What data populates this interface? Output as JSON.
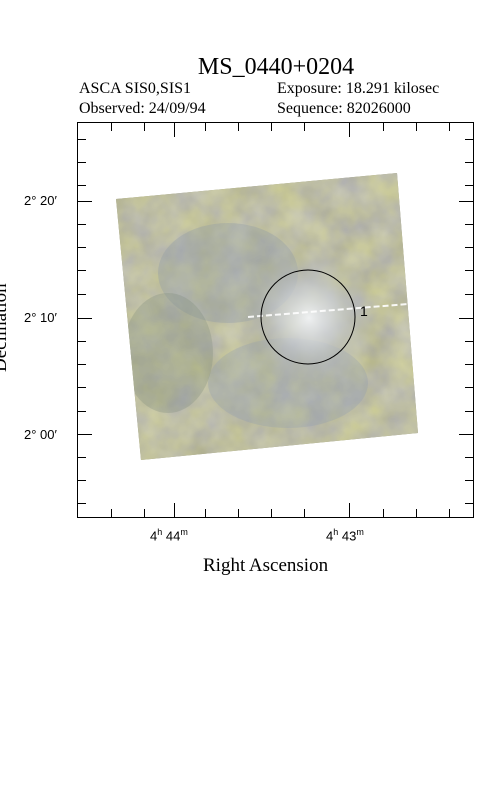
{
  "header": {
    "title": "MS_0440+0204",
    "instrument": "ASCA SIS0,SIS1",
    "observed": "Observed: 24/09/94",
    "exposure": "Exposure: 18.291 kilosec",
    "sequence": "Sequence: 82026000"
  },
  "axes": {
    "x_label": "Right Ascension",
    "y_label": "Declination",
    "x_ticks": [
      {
        "h": "4",
        "m": "44"
      },
      {
        "h": "4",
        "m": "43"
      }
    ],
    "y_ticks": [
      "2° 20′",
      "2° 10′",
      "2° 00′"
    ]
  },
  "source": {
    "label": "1"
  },
  "colors": {
    "image_base": "#8a8a64",
    "source_glow": "#e9eef2"
  }
}
